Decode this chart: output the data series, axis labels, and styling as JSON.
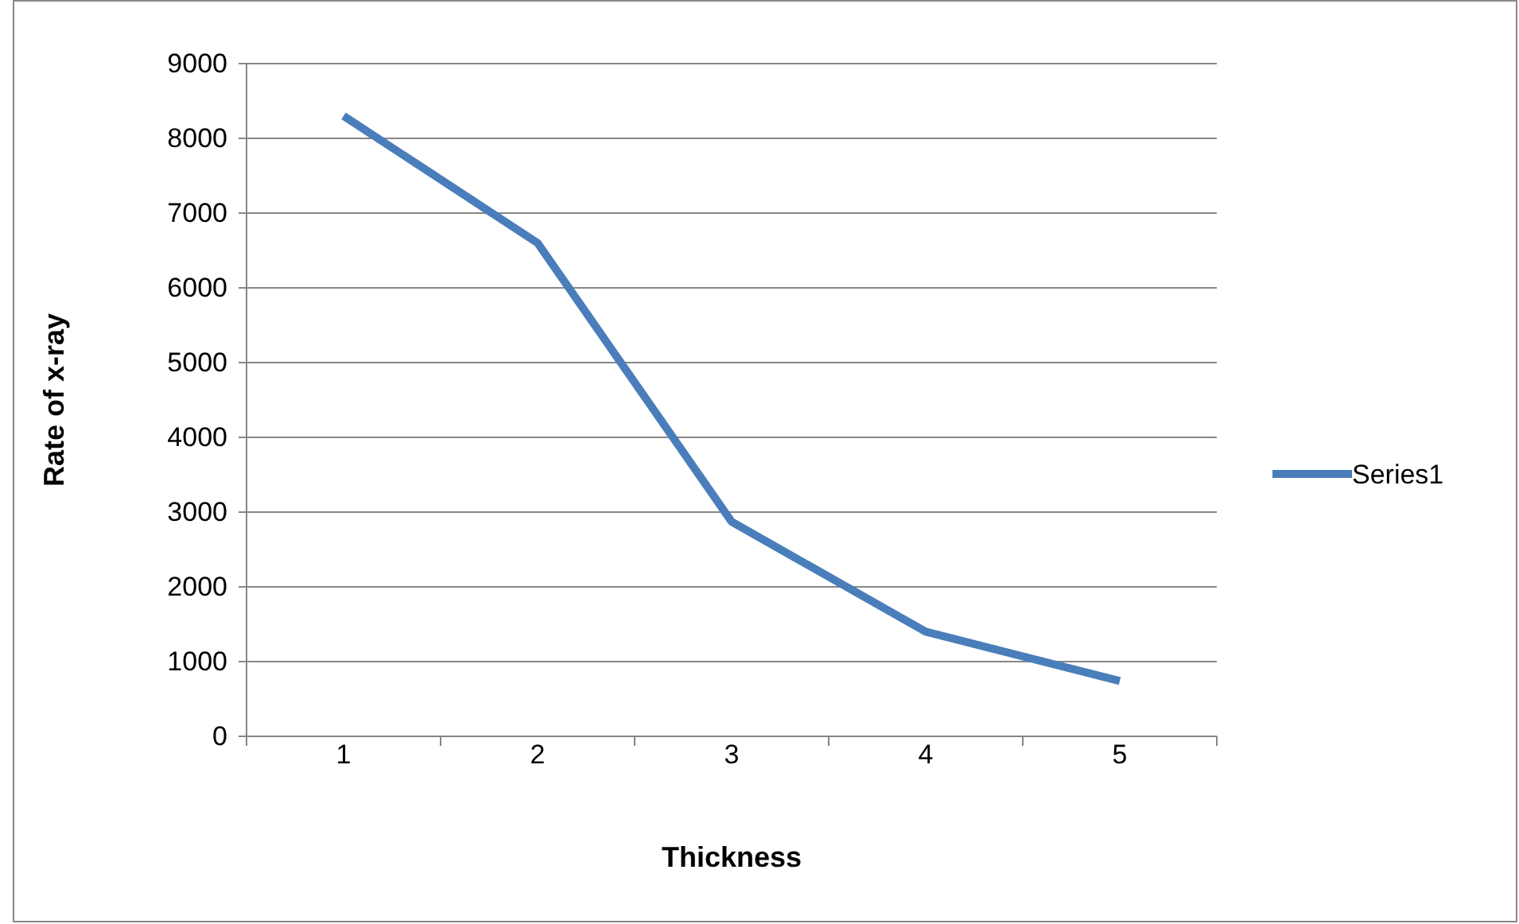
{
  "chart_data": {
    "type": "line",
    "xlabel": "Thickness",
    "ylabel": "Rate of x-ray",
    "categories": [
      "1",
      "2",
      "3",
      "4",
      "5"
    ],
    "series": [
      {
        "name": "Series1",
        "color": "#4a7ebb",
        "values": [
          8300,
          6600,
          2870,
          1400,
          740
        ]
      }
    ],
    "ylim": [
      0,
      9000
    ],
    "yticks": [
      0,
      1000,
      2000,
      3000,
      4000,
      5000,
      6000,
      7000,
      8000,
      9000
    ],
    "grid": "y",
    "legend": "right",
    "marker": "none",
    "line_style": "solid"
  }
}
